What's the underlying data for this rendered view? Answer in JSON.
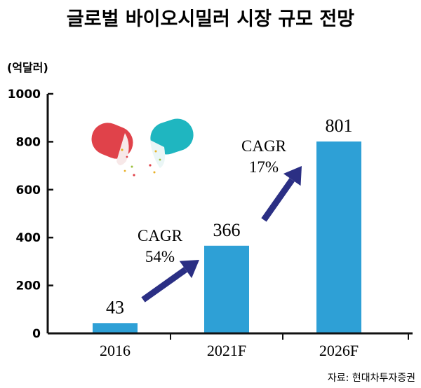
{
  "chart_data": {
    "type": "bar",
    "title": "글로벌 바이오시밀러 시장 규모 전망",
    "ylabel": "(억달러)",
    "xlabel": "",
    "categories": [
      "2016",
      "2021F",
      "2026F"
    ],
    "values": [
      43,
      366,
      801
    ],
    "value_labels": [
      "43",
      "366",
      "801"
    ],
    "ylim": [
      0,
      1000
    ],
    "yticks": [
      0,
      200,
      400,
      600,
      800,
      1000
    ],
    "grid": false,
    "annotations": [
      {
        "line1": "CAGR",
        "line2": "54%"
      },
      {
        "line1": "CAGR",
        "line2": "17%"
      }
    ],
    "source": "자료: 현대차투자증권"
  },
  "colors": {
    "bar": "#2ea0d6",
    "arrow": "#2b2f84",
    "axis": "#111111",
    "capsule_red": "#e0424a",
    "capsule_teal": "#1fb6c0"
  },
  "icons": [
    "capsule-icon"
  ]
}
